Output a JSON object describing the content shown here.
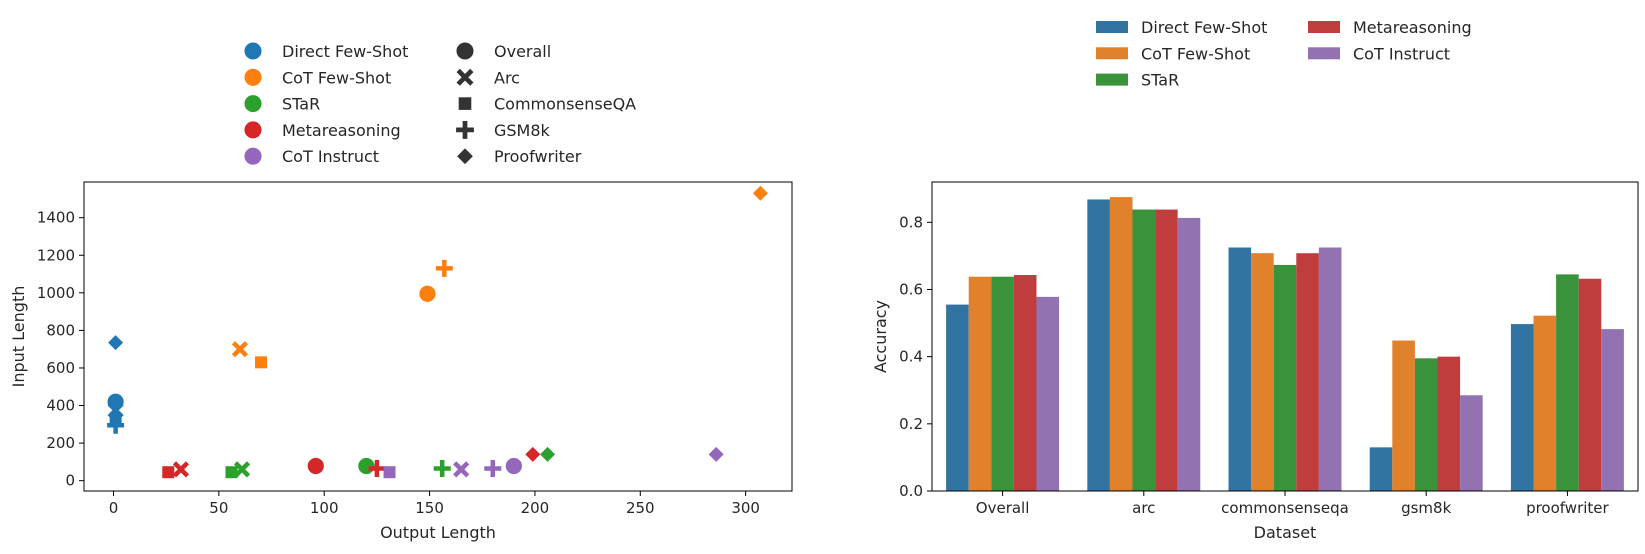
{
  "colors": {
    "Direct Few-Shot": "#1f77b4",
    "CoT Few-Shot": "#ff7f0e",
    "STaR": "#2ca02c",
    "Metareasoning": "#d62728",
    "CoT Instruct": "#9467bd",
    "marker_black": "#333333",
    "bar": {
      "Direct Few-Shot": "#3274a1",
      "CoT Few-Shot": "#e1812c",
      "STaR": "#3a923a",
      "Metareasoning": "#c03d3e",
      "CoT Instruct": "#9372b2"
    }
  },
  "chart_data": [
    {
      "type": "scatter",
      "xlabel": "Output Length",
      "ylabel": "Input Length",
      "xlim": [
        -14,
        322
      ],
      "ylim": [
        -55,
        1590
      ],
      "xticks": [
        0,
        50,
        100,
        150,
        200,
        250,
        300
      ],
      "yticks": [
        0,
        200,
        400,
        600,
        800,
        1000,
        1200,
        1400
      ],
      "legend_methods": [
        "Direct Few-Shot",
        "CoT Few-Shot",
        "STaR",
        "Metareasoning",
        "CoT Instruct"
      ],
      "legend_datasets": [
        {
          "label": "Overall",
          "marker": "circle"
        },
        {
          "label": "Arc",
          "marker": "x"
        },
        {
          "label": "CommonsenseQA",
          "marker": "square"
        },
        {
          "label": "GSM8k",
          "marker": "plus"
        },
        {
          "label": "Proofwriter",
          "marker": "diamond"
        }
      ],
      "points": [
        {
          "method": "Direct Few-Shot",
          "marker": "circle",
          "x": 1,
          "y": 420
        },
        {
          "method": "Direct Few-Shot",
          "marker": "x",
          "x": 1,
          "y": 375
        },
        {
          "method": "Direct Few-Shot",
          "marker": "square",
          "x": 1,
          "y": 330
        },
        {
          "method": "Direct Few-Shot",
          "marker": "plus",
          "x": 1,
          "y": 295
        },
        {
          "method": "Direct Few-Shot",
          "marker": "diamond",
          "x": 1,
          "y": 735
        },
        {
          "method": "CoT Few-Shot",
          "marker": "circle",
          "x": 149,
          "y": 995
        },
        {
          "method": "CoT Few-Shot",
          "marker": "x",
          "x": 60,
          "y": 700
        },
        {
          "method": "CoT Few-Shot",
          "marker": "square",
          "x": 70,
          "y": 630
        },
        {
          "method": "CoT Few-Shot",
          "marker": "plus",
          "x": 157,
          "y": 1130
        },
        {
          "method": "CoT Few-Shot",
          "marker": "diamond",
          "x": 307,
          "y": 1530
        },
        {
          "method": "STaR",
          "marker": "circle",
          "x": 120,
          "y": 78
        },
        {
          "method": "STaR",
          "marker": "x",
          "x": 61,
          "y": 60
        },
        {
          "method": "STaR",
          "marker": "square",
          "x": 56,
          "y": 45
        },
        {
          "method": "STaR",
          "marker": "plus",
          "x": 156,
          "y": 65
        },
        {
          "method": "STaR",
          "marker": "diamond",
          "x": 206,
          "y": 140
        },
        {
          "method": "Metareasoning",
          "marker": "circle",
          "x": 96,
          "y": 78
        },
        {
          "method": "Metareasoning",
          "marker": "x",
          "x": 32,
          "y": 60
        },
        {
          "method": "Metareasoning",
          "marker": "square",
          "x": 26,
          "y": 45
        },
        {
          "method": "Metareasoning",
          "marker": "plus",
          "x": 125,
          "y": 65
        },
        {
          "method": "Metareasoning",
          "marker": "diamond",
          "x": 199,
          "y": 140
        },
        {
          "method": "CoT Instruct",
          "marker": "circle",
          "x": 190,
          "y": 78
        },
        {
          "method": "CoT Instruct",
          "marker": "x",
          "x": 165,
          "y": 60
        },
        {
          "method": "CoT Instruct",
          "marker": "square",
          "x": 131,
          "y": 45
        },
        {
          "method": "CoT Instruct",
          "marker": "plus",
          "x": 180,
          "y": 65
        },
        {
          "method": "CoT Instruct",
          "marker": "diamond",
          "x": 286,
          "y": 140
        }
      ]
    },
    {
      "type": "bar",
      "xlabel": "Dataset",
      "ylabel": "Accuracy",
      "ylim": [
        0,
        0.92
      ],
      "yticks": [
        0.0,
        0.2,
        0.4,
        0.6,
        0.8
      ],
      "ytick_labels": [
        "0.0",
        "0.2",
        "0.4",
        "0.6",
        "0.8"
      ],
      "categories": [
        "Overall",
        "arc",
        "commonsenseqa",
        "gsm8k",
        "proofwriter"
      ],
      "series": [
        {
          "name": "Direct Few-Shot",
          "values": [
            0.555,
            0.868,
            0.725,
            0.13,
            0.497
          ]
        },
        {
          "name": "CoT Few-Shot",
          "values": [
            0.638,
            0.875,
            0.708,
            0.448,
            0.522
          ]
        },
        {
          "name": "STaR",
          "values": [
            0.638,
            0.838,
            0.673,
            0.395,
            0.645
          ]
        },
        {
          "name": "Metareasoning",
          "values": [
            0.643,
            0.838,
            0.708,
            0.4,
            0.632
          ]
        },
        {
          "name": "CoT Instruct",
          "values": [
            0.578,
            0.813,
            0.725,
            0.285,
            0.482
          ]
        }
      ]
    }
  ]
}
